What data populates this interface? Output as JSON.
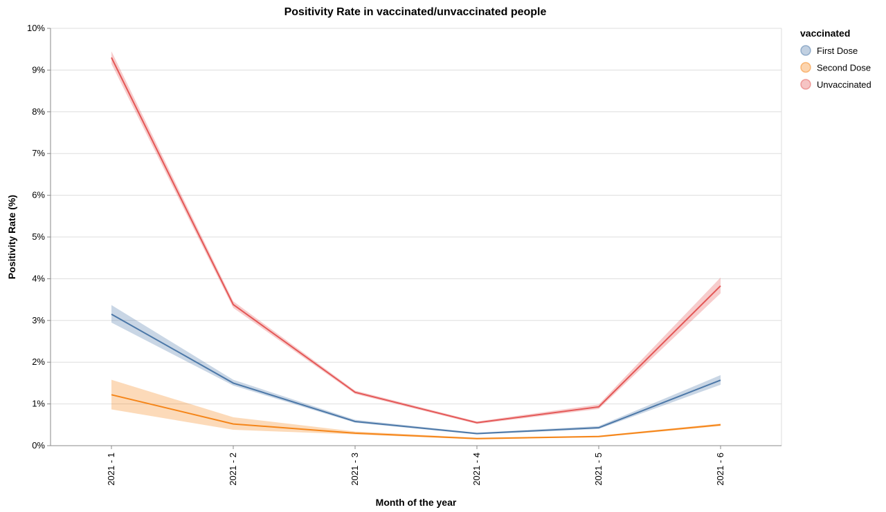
{
  "chart_data": {
    "type": "line",
    "title": "Positivity Rate in vaccinated/unvaccinated people",
    "xlabel": "Month of the year",
    "ylabel": "Positivity Rate (%)",
    "categories": [
      "2021 - 1",
      "2021 - 2",
      "2021 - 3",
      "2021 - 4",
      "2021 - 5",
      "2021 - 6"
    ],
    "y_ticks": [
      "0%",
      "1%",
      "2%",
      "3%",
      "4%",
      "5%",
      "6%",
      "7%",
      "8%",
      "9%",
      "10%"
    ],
    "ylim": [
      0,
      10
    ],
    "grid": true,
    "legend": {
      "title": "vaccinated",
      "position": "right"
    },
    "series": [
      {
        "name": "First Dose",
        "color": "#4c78a8",
        "values": [
          3.15,
          1.5,
          0.58,
          0.29,
          0.43,
          1.57
        ],
        "lower": [
          2.95,
          1.44,
          0.55,
          0.27,
          0.4,
          1.46
        ],
        "upper": [
          3.37,
          1.58,
          0.62,
          0.31,
          0.47,
          1.69
        ]
      },
      {
        "name": "Second Dose",
        "color": "#f58518",
        "values": [
          1.22,
          0.52,
          0.3,
          0.17,
          0.22,
          0.5
        ],
        "lower": [
          0.87,
          0.38,
          0.27,
          0.15,
          0.2,
          0.47
        ],
        "upper": [
          1.58,
          0.68,
          0.34,
          0.19,
          0.24,
          0.53
        ]
      },
      {
        "name": "Unvaccinated",
        "color": "#e45756",
        "values": [
          9.3,
          3.38,
          1.28,
          0.55,
          0.93,
          3.83
        ],
        "lower": [
          9.15,
          3.3,
          1.24,
          0.52,
          0.88,
          3.65
        ],
        "upper": [
          9.45,
          3.46,
          1.32,
          0.58,
          0.99,
          4.03
        ]
      }
    ]
  }
}
